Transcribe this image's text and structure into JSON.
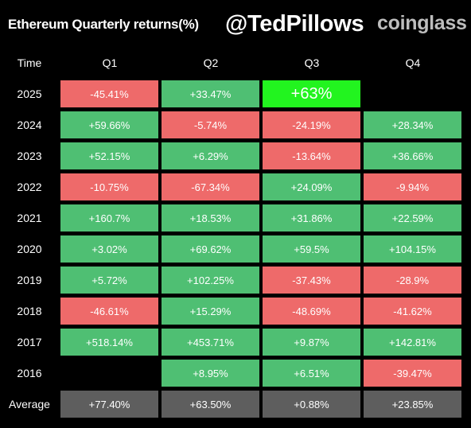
{
  "header": {
    "title": "Ethereum Quarterly returns(%)",
    "handle": "@TedPillows",
    "brand": "coinglass"
  },
  "colors": {
    "background": "#000000",
    "positive": "#4fbf73",
    "negative": "#ee6a6a",
    "highlight": "#22f41f",
    "average": "#5e5e5e",
    "brand": "#bdbdbd"
  },
  "chart_data": {
    "type": "table",
    "title": "Ethereum Quarterly returns(%)",
    "columns": [
      "Time",
      "Q1",
      "Q2",
      "Q3",
      "Q4"
    ],
    "rows": [
      {
        "label": "2025",
        "values": [
          "-45.41%",
          "+33.47%",
          "+63%",
          ""
        ],
        "highlight": [
          false,
          false,
          true,
          false
        ]
      },
      {
        "label": "2024",
        "values": [
          "+59.66%",
          "-5.74%",
          "-24.19%",
          "+28.34%"
        ]
      },
      {
        "label": "2023",
        "values": [
          "+52.15%",
          "+6.29%",
          "-13.64%",
          "+36.66%"
        ]
      },
      {
        "label": "2022",
        "values": [
          "-10.75%",
          "-67.34%",
          "+24.09%",
          "-9.94%"
        ]
      },
      {
        "label": "2021",
        "values": [
          "+160.7%",
          "+18.53%",
          "+31.86%",
          "+22.59%"
        ]
      },
      {
        "label": "2020",
        "values": [
          "+3.02%",
          "+69.62%",
          "+59.5%",
          "+104.15%"
        ]
      },
      {
        "label": "2019",
        "values": [
          "+5.72%",
          "+102.25%",
          "-37.43%",
          "-28.9%"
        ]
      },
      {
        "label": "2018",
        "values": [
          "-46.61%",
          "+15.29%",
          "-48.69%",
          "-41.62%"
        ]
      },
      {
        "label": "2017",
        "values": [
          "+518.14%",
          "+453.71%",
          "+9.87%",
          "+142.81%"
        ]
      },
      {
        "label": "2016",
        "values": [
          "",
          "+8.95%",
          "+6.51%",
          "-39.47%"
        ]
      }
    ],
    "average": {
      "label": "Average",
      "values": [
        "+77.40%",
        "+63.50%",
        "+0.88%",
        "+23.85%"
      ]
    }
  }
}
